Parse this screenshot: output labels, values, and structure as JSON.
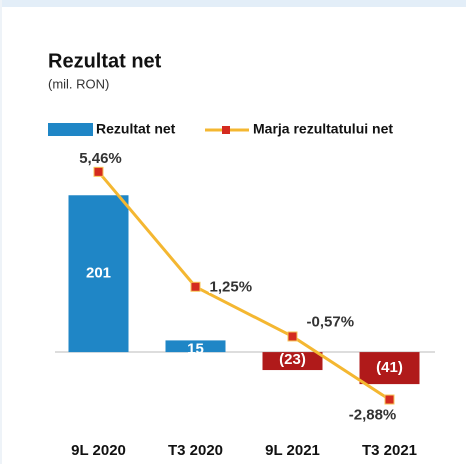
{
  "chart_data": {
    "type": "bar-line",
    "title": "Rezultat net",
    "subtitle": "(mil. RON)",
    "categories": [
      "9L 2020",
      "T3 2020",
      "9L 2021",
      "T3 2021"
    ],
    "series": [
      {
        "name": "Rezultat net",
        "type": "bar",
        "color": "#1f86c6",
        "colors": [
          "#1f86c6",
          "#1f86c6",
          "#b01a1a",
          "#b01a1a"
        ],
        "values": [
          201,
          15,
          -23,
          -41
        ],
        "value_labels": [
          "201",
          "15",
          "(23)",
          "(41)"
        ]
      },
      {
        "name": "Marja rezultatului net",
        "type": "line",
        "axis": "y2",
        "color": "#f4b731",
        "marker_color": "#d42a1f",
        "values": [
          5.46,
          1.25,
          -0.57,
          -2.88
        ],
        "value_labels": [
          "5,46%",
          "1,25%",
          "-0,57%",
          "-2,88%"
        ]
      }
    ],
    "ylim": [
      -87,
      259
    ],
    "y2lim": [
      -3.63,
      6.26
    ]
  }
}
